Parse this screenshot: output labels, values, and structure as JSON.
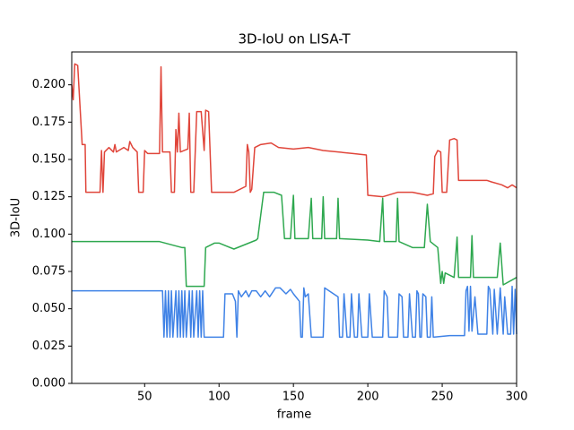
{
  "chart_data": {
    "type": "line",
    "title": "3D-IoU on LISA-T",
    "xlabel": "frame",
    "ylabel": "3D-IoU",
    "xlim": [
      1,
      300
    ],
    "xticks": [
      50,
      100,
      150,
      200,
      250,
      300
    ],
    "ylim": [
      0,
      0.222
    ],
    "yticks": [
      {
        "value": 0,
        "label": "0.000"
      },
      {
        "value": 0.025,
        "label": "0.025"
      },
      {
        "value": 0.05,
        "label": "0.050"
      },
      {
        "value": 0.075,
        "label": "0.075"
      },
      {
        "value": 0.1,
        "label": "0.100"
      },
      {
        "value": 0.125,
        "label": "0.125"
      },
      {
        "value": 0.15,
        "label": "0.150"
      },
      {
        "value": 0.175,
        "label": "0.175"
      },
      {
        "value": 0.2,
        "label": "0.200"
      }
    ],
    "grid": false,
    "series": [
      {
        "color": "#e0453a",
        "x": [
          1,
          2,
          3,
          5,
          8,
          10,
          10.5,
          20,
          21,
          22,
          23,
          26,
          29,
          30,
          31,
          36,
          39,
          40,
          42,
          45,
          46,
          49,
          50,
          52,
          60,
          61,
          62,
          67,
          68,
          70,
          71,
          72,
          73,
          74,
          79,
          80,
          81,
          83,
          85,
          88,
          90,
          91,
          93,
          95,
          110,
          118,
          119,
          120,
          121,
          122,
          124,
          128,
          135,
          140,
          150,
          160,
          170,
          180,
          190,
          199,
          200,
          210,
          220,
          230,
          240,
          244,
          245,
          247,
          249,
          250,
          253,
          255,
          258,
          260,
          261,
          270,
          280,
          283,
          290,
          294,
          297,
          300
        ],
        "values": [
          0.2,
          0.19,
          0.214,
          0.213,
          0.16,
          0.16,
          0.128,
          0.128,
          0.156,
          0.128,
          0.155,
          0.158,
          0.155,
          0.16,
          0.155,
          0.158,
          0.156,
          0.162,
          0.158,
          0.155,
          0.128,
          0.128,
          0.156,
          0.154,
          0.154,
          0.212,
          0.155,
          0.155,
          0.128,
          0.128,
          0.17,
          0.155,
          0.181,
          0.155,
          0.157,
          0.181,
          0.128,
          0.128,
          0.182,
          0.182,
          0.156,
          0.183,
          0.182,
          0.128,
          0.128,
          0.132,
          0.16,
          0.155,
          0.128,
          0.13,
          0.158,
          0.16,
          0.161,
          0.158,
          0.157,
          0.158,
          0.156,
          0.155,
          0.154,
          0.153,
          0.126,
          0.125,
          0.128,
          0.128,
          0.126,
          0.127,
          0.152,
          0.156,
          0.155,
          0.128,
          0.128,
          0.163,
          0.164,
          0.163,
          0.136,
          0.136,
          0.136,
          0.135,
          0.133,
          0.131,
          0.133,
          0.131
        ]
      },
      {
        "color": "#2ea84f",
        "x": [
          1,
          60,
          75,
          77,
          78,
          90,
          91,
          97,
          100,
          110,
          125,
          126,
          130,
          137,
          142,
          144,
          148,
          150,
          151,
          160,
          162,
          163,
          169,
          170,
          171,
          179,
          180,
          181,
          200,
          208,
          210,
          211,
          219,
          220,
          221,
          230,
          238,
          240,
          242,
          247,
          249,
          250,
          251,
          252,
          258,
          260,
          261,
          269,
          270,
          271,
          287,
          289,
          291,
          300
        ],
        "values": [
          0.095,
          0.095,
          0.091,
          0.091,
          0.065,
          0.065,
          0.091,
          0.094,
          0.094,
          0.09,
          0.096,
          0.097,
          0.128,
          0.128,
          0.126,
          0.097,
          0.097,
          0.126,
          0.097,
          0.097,
          0.124,
          0.097,
          0.097,
          0.125,
          0.097,
          0.097,
          0.124,
          0.097,
          0.096,
          0.095,
          0.124,
          0.095,
          0.095,
          0.124,
          0.095,
          0.091,
          0.091,
          0.12,
          0.095,
          0.091,
          0.067,
          0.075,
          0.067,
          0.074,
          0.071,
          0.098,
          0.071,
          0.071,
          0.099,
          0.071,
          0.071,
          0.094,
          0.066,
          0.071
        ]
      },
      {
        "color": "#3f82e6",
        "x": [
          1,
          62,
          63,
          64,
          65,
          66,
          67,
          68,
          69,
          71,
          72,
          73,
          74,
          75,
          76,
          77,
          78,
          80,
          81,
          82,
          83,
          85,
          86,
          87,
          88,
          89,
          90,
          103,
          104,
          109,
          111,
          112,
          113,
          115,
          118,
          120,
          122,
          125,
          128,
          131,
          134,
          138,
          141,
          145,
          148,
          150,
          154,
          155,
          156,
          157,
          158,
          160,
          162,
          170,
          171,
          180,
          181,
          183,
          184,
          186,
          188,
          189,
          191,
          193,
          194,
          196,
          200,
          201,
          203,
          210,
          211,
          213,
          214,
          220,
          221,
          223,
          224,
          227,
          228,
          230,
          232,
          233,
          234,
          235,
          236,
          237,
          239,
          240,
          242,
          243,
          244,
          255,
          265,
          266,
          267,
          268,
          269,
          270,
          272,
          274,
          280,
          281,
          282,
          284,
          285,
          287,
          289,
          291,
          292,
          294,
          296,
          297,
          298,
          299,
          300
        ],
        "values": [
          0.062,
          0.062,
          0.031,
          0.062,
          0.031,
          0.062,
          0.031,
          0.062,
          0.031,
          0.062,
          0.031,
          0.062,
          0.031,
          0.062,
          0.031,
          0.062,
          0.031,
          0.062,
          0.031,
          0.062,
          0.031,
          0.062,
          0.031,
          0.062,
          0.031,
          0.062,
          0.031,
          0.031,
          0.06,
          0.06,
          0.055,
          0.031,
          0.062,
          0.058,
          0.062,
          0.058,
          0.062,
          0.062,
          0.058,
          0.062,
          0.058,
          0.064,
          0.064,
          0.06,
          0.063,
          0.06,
          0.055,
          0.031,
          0.031,
          0.064,
          0.058,
          0.06,
          0.031,
          0.031,
          0.064,
          0.058,
          0.031,
          0.031,
          0.06,
          0.031,
          0.031,
          0.06,
          0.031,
          0.031,
          0.06,
          0.031,
          0.031,
          0.06,
          0.031,
          0.031,
          0.062,
          0.058,
          0.031,
          0.031,
          0.06,
          0.058,
          0.031,
          0.031,
          0.06,
          0.031,
          0.031,
          0.062,
          0.06,
          0.031,
          0.031,
          0.06,
          0.058,
          0.031,
          0.031,
          0.058,
          0.031,
          0.032,
          0.032,
          0.062,
          0.065,
          0.035,
          0.065,
          0.035,
          0.058,
          0.033,
          0.033,
          0.065,
          0.063,
          0.033,
          0.063,
          0.033,
          0.064,
          0.033,
          0.058,
          0.033,
          0.033,
          0.065,
          0.033,
          0.063,
          0.033
        ]
      }
    ]
  }
}
